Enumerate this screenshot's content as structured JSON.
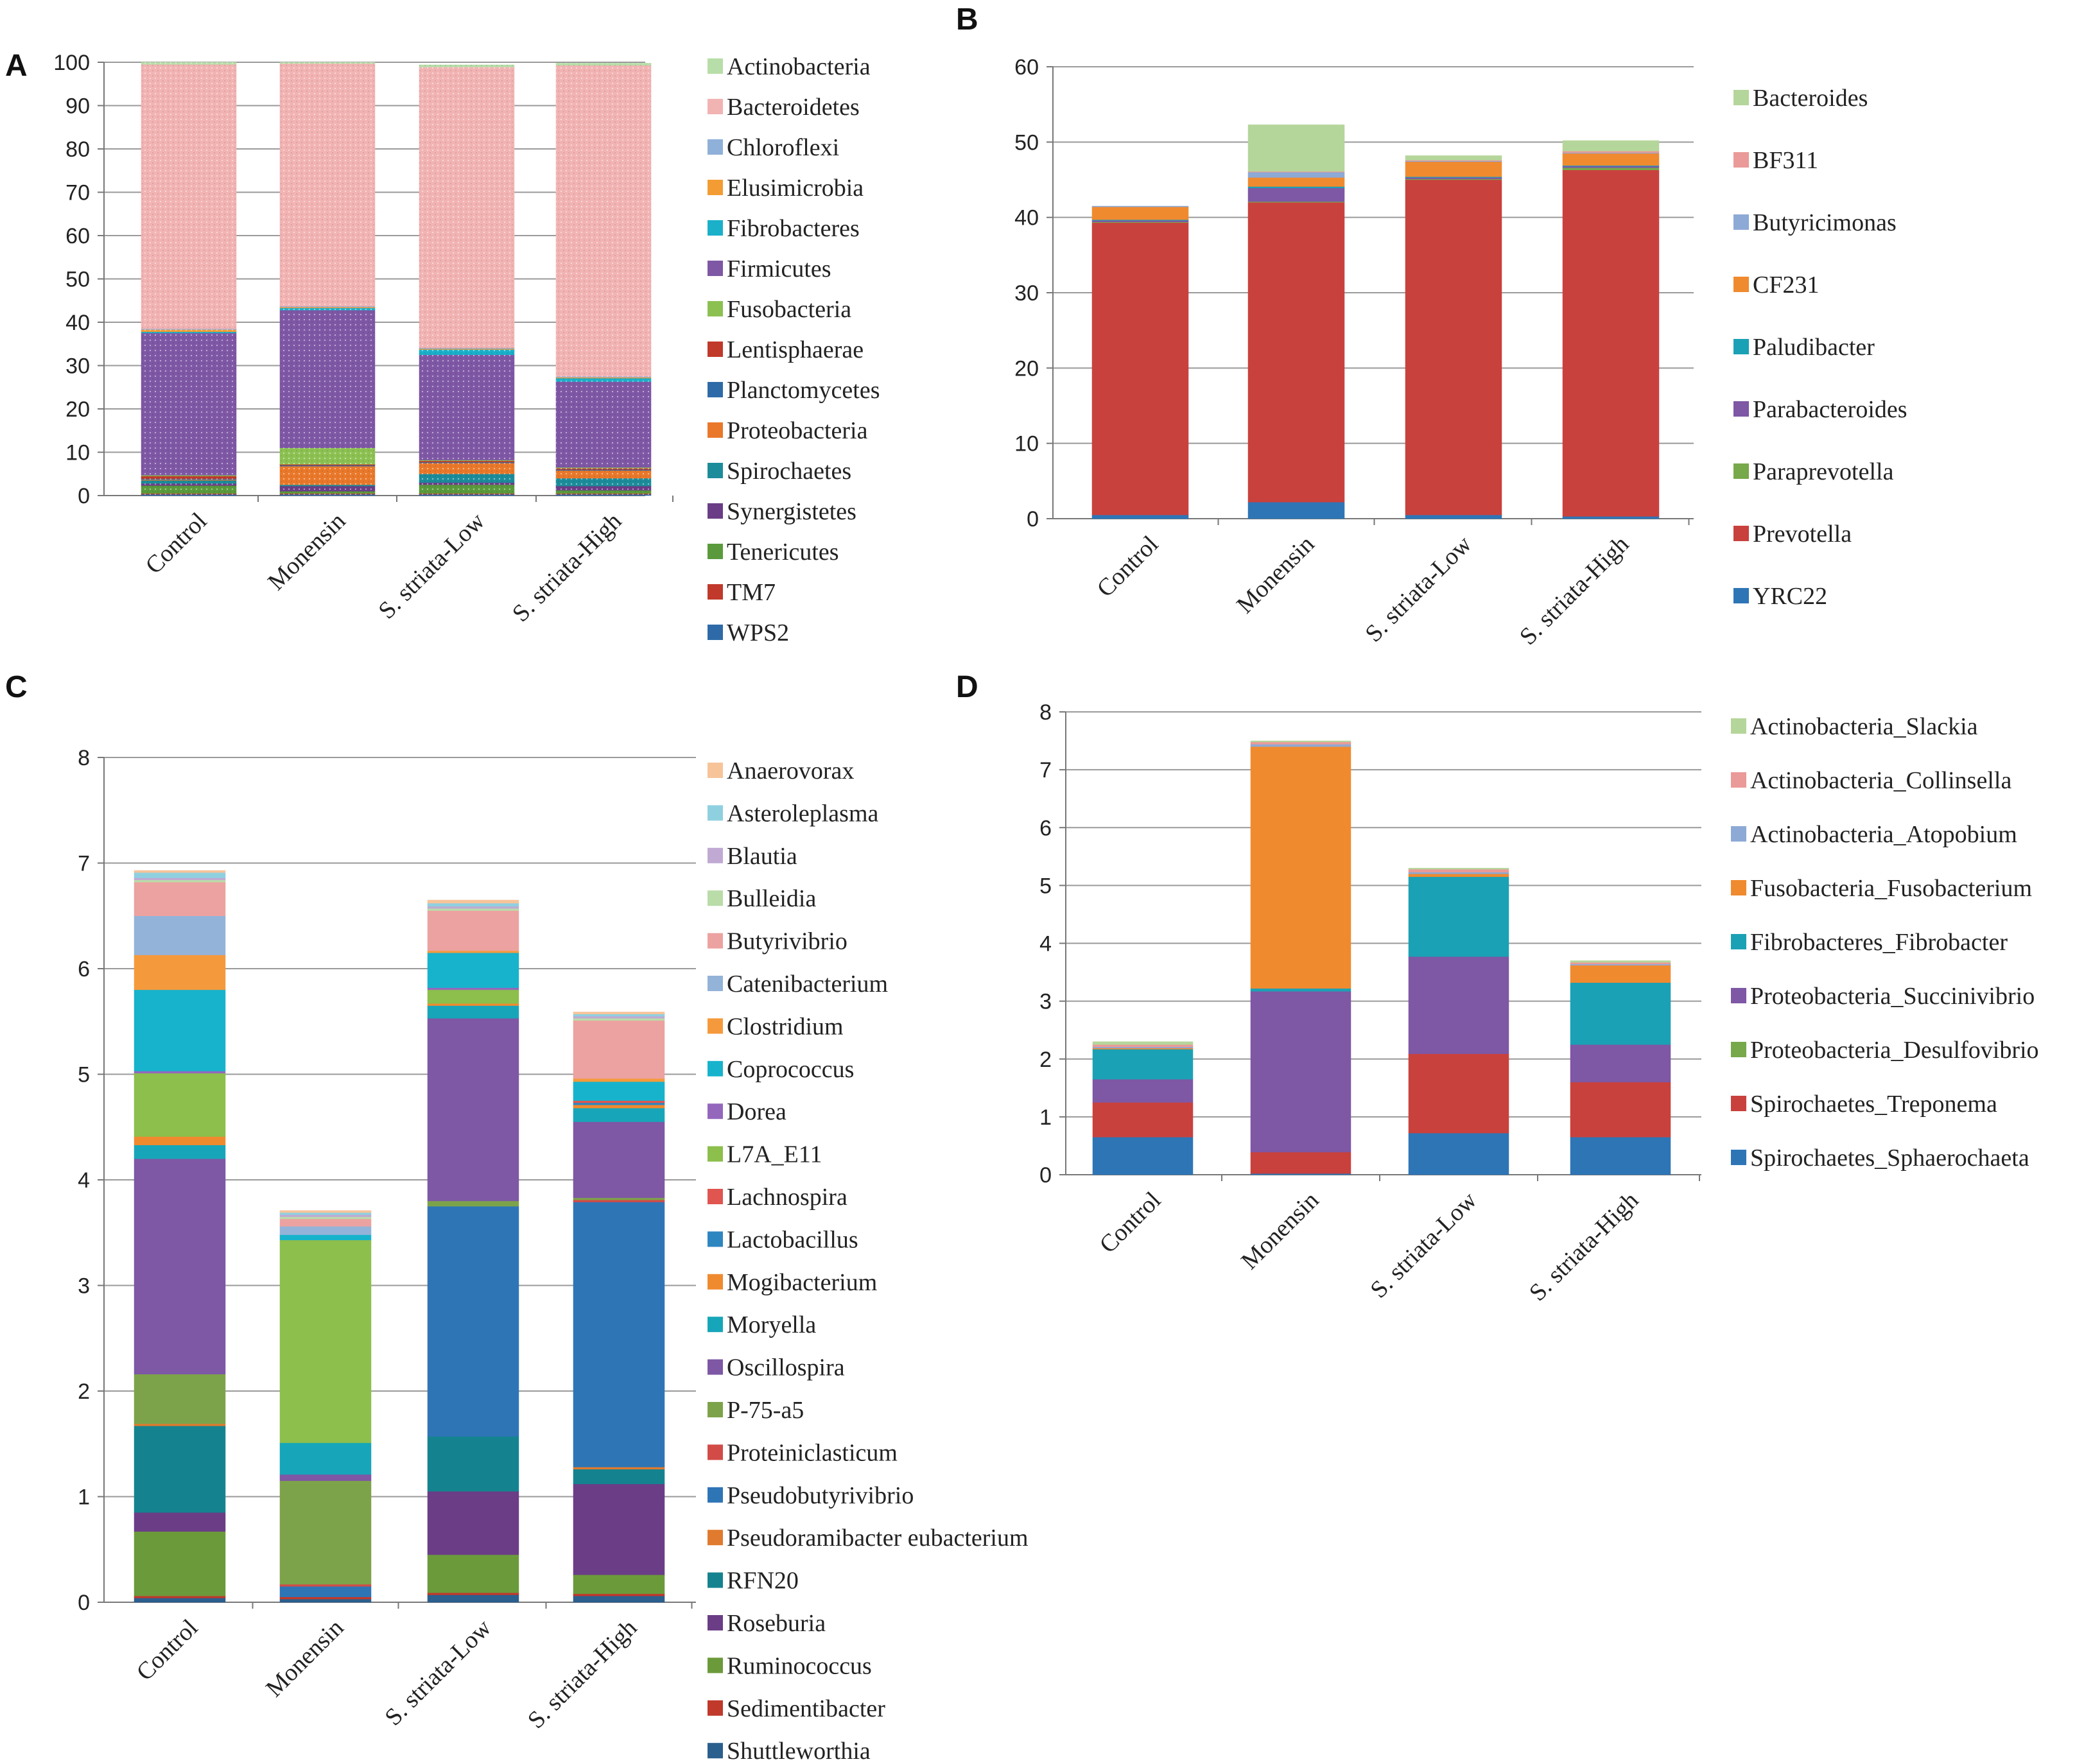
{
  "chart_data": [
    {
      "id": "A",
      "panel_label": "A",
      "type": "bar",
      "stacked": true,
      "pattern": "dotted",
      "categories": [
        "Control",
        "Monensin",
        "S. striata-Low",
        "S. striata-High"
      ],
      "ylim": [
        0,
        100
      ],
      "yticks": [
        0,
        10,
        20,
        30,
        40,
        50,
        60,
        70,
        80,
        90,
        100
      ],
      "series": [
        {
          "name": "WPS2",
          "color": "#2e6aa8",
          "values": [
            0.3,
            0.3,
            0.3,
            0.3
          ]
        },
        {
          "name": "TM7",
          "color": "#c0392b",
          "values": [
            0.2,
            0.2,
            0.2,
            0.2
          ]
        },
        {
          "name": "Tenericutes",
          "color": "#5a9a3c",
          "values": [
            1.8,
            0.5,
            2.0,
            0.7
          ]
        },
        {
          "name": "Synergistetes",
          "color": "#6b3d86",
          "values": [
            0.5,
            1.2,
            0.5,
            1.0
          ]
        },
        {
          "name": "Spirochaetes",
          "color": "#1c8c9a",
          "values": [
            0.7,
            0.3,
            2.0,
            1.8
          ]
        },
        {
          "name": "Proteobacteria",
          "color": "#e9782a",
          "values": [
            0.2,
            4.3,
            2.5,
            1.8
          ]
        },
        {
          "name": "Planctomycetes",
          "color": "#2e6aa8",
          "values": [
            0.2,
            0.2,
            0.2,
            0.2
          ]
        },
        {
          "name": "Lentisphaerae",
          "color": "#c0392b",
          "values": [
            0.6,
            0.2,
            0.3,
            0.3
          ]
        },
        {
          "name": "Fusobacteria",
          "color": "#8cc152",
          "values": [
            0.2,
            3.8,
            0.2,
            0.2
          ]
        },
        {
          "name": "Firmicutes",
          "color": "#7e57a5",
          "values": [
            32.8,
            31.8,
            24.3,
            19.8
          ]
        },
        {
          "name": "Fibrobacteres",
          "color": "#1ab0c9",
          "values": [
            0.3,
            0.5,
            1.2,
            0.8
          ]
        },
        {
          "name": "Elusimicrobia",
          "color": "#f39c33",
          "values": [
            0.5,
            0.2,
            0.2,
            0.2
          ]
        },
        {
          "name": "Chloroflexi",
          "color": "#8fb0d9",
          "values": [
            0.2,
            0.2,
            0.2,
            0.2
          ]
        },
        {
          "name": "Bacteroidetes",
          "color": "#f2b3b3",
          "values": [
            61.0,
            56.0,
            64.8,
            71.8
          ]
        },
        {
          "name": "Actinobacteria",
          "color": "#b7dea8",
          "values": [
            0.5,
            0.3,
            0.5,
            0.5
          ]
        }
      ],
      "legend_order": [
        "Actinobacteria",
        "Bacteroidetes",
        "Chloroflexi",
        "Elusimicrobia",
        "Fibrobacteres",
        "Firmicutes",
        "Fusobacteria",
        "Lentisphaerae",
        "Planctomycetes",
        "Proteobacteria",
        "Spirochaetes",
        "Synergistetes",
        "Tenericutes",
        "TM7",
        "WPS2"
      ]
    },
    {
      "id": "B",
      "panel_label": "B",
      "type": "bar",
      "stacked": true,
      "categories": [
        "Control",
        "Monensin",
        "S. striata-Low",
        "S. striata-High"
      ],
      "ylim": [
        0,
        60
      ],
      "yticks": [
        0,
        10,
        20,
        30,
        40,
        50,
        60
      ],
      "series": [
        {
          "name": "YRC22",
          "color": "#2e75b6",
          "values": [
            0.5,
            2.2,
            0.5,
            0.3
          ]
        },
        {
          "name": "Prevotella",
          "color": "#c9413d",
          "values": [
            38.8,
            39.8,
            44.5,
            46.0
          ]
        },
        {
          "name": "Paraprevotella",
          "color": "#77a84a",
          "values": [
            0.1,
            0.1,
            0.1,
            0.3
          ]
        },
        {
          "name": "Parabacteroides",
          "color": "#7e57a5",
          "values": [
            0.2,
            1.8,
            0.2,
            0.2
          ]
        },
        {
          "name": "Paludibacter",
          "color": "#1ba1b5",
          "values": [
            0.1,
            0.2,
            0.1,
            0.1
          ]
        },
        {
          "name": "CF231",
          "color": "#f08a2f",
          "values": [
            1.7,
            1.2,
            2.0,
            1.6
          ]
        },
        {
          "name": "Butyricimonas",
          "color": "#8da9d6",
          "values": [
            0.1,
            0.7,
            0.1,
            0.1
          ]
        },
        {
          "name": "BF311",
          "color": "#ea9a98",
          "values": [
            0.0,
            0.1,
            0.1,
            0.2
          ]
        },
        {
          "name": "Bacteroides",
          "color": "#b5d69b",
          "values": [
            0.0,
            6.2,
            0.6,
            1.4
          ]
        }
      ],
      "legend_order": [
        "Bacteroides",
        "BF311",
        "Butyricimonas",
        "CF231",
        "Paludibacter",
        "Parabacteroides",
        "Paraprevotella",
        "Prevotella",
        "YRC22"
      ]
    },
    {
      "id": "C",
      "panel_label": "C",
      "type": "bar",
      "stacked": true,
      "categories": [
        "Control",
        "Monensin",
        "S. striata-Low",
        "S. striata-High"
      ],
      "ylim": [
        0,
        8
      ],
      "yticks": [
        0,
        1,
        2,
        3,
        4,
        5,
        6,
        7,
        8
      ],
      "series": [
        {
          "name": "Shuttleworthia",
          "color": "#2b5f8e",
          "values": [
            0.04,
            0.03,
            0.07,
            0.06
          ]
        },
        {
          "name": "Sedimentibacter",
          "color": "#c0392b",
          "values": [
            0.02,
            0.02,
            0.02,
            0.02
          ]
        },
        {
          "name": "Ruminococcus",
          "color": "#6b9a3b",
          "values": [
            0.61,
            0.0,
            0.36,
            0.18
          ]
        },
        {
          "name": "Roseburia",
          "color": "#6b3d86",
          "values": [
            0.18,
            0.0,
            0.6,
            0.86
          ]
        },
        {
          "name": "RFN20",
          "color": "#15838f",
          "values": [
            0.82,
            0.0,
            0.52,
            0.14
          ]
        },
        {
          "name": "Pseudoramibacter eubacterium",
          "color": "#e07a2e",
          "values": [
            0.02,
            0.0,
            0.0,
            0.02
          ]
        },
        {
          "name": "Pseudobutyrivibrio",
          "color": "#2e75b6",
          "values": [
            0.0,
            0.1,
            2.18,
            2.51
          ]
        },
        {
          "name": "Proteiniclasticum",
          "color": "#d24b47",
          "values": [
            0.0,
            0.02,
            0.0,
            0.02
          ]
        },
        {
          "name": "P-75-a5",
          "color": "#7da34a",
          "values": [
            0.47,
            0.98,
            0.05,
            0.02
          ]
        },
        {
          "name": "Oscillospira",
          "color": "#7e57a5",
          "values": [
            2.04,
            0.06,
            1.73,
            0.72
          ]
        },
        {
          "name": "Moryella",
          "color": "#17a6b9",
          "values": [
            0.13,
            0.3,
            0.12,
            0.13
          ]
        },
        {
          "name": "Mogibacterium",
          "color": "#f08a2f",
          "values": [
            0.08,
            0.0,
            0.02,
            0.03
          ]
        },
        {
          "name": "Lactobacillus",
          "color": "#2e86c1",
          "values": [
            0.0,
            0.0,
            0.0,
            0.02
          ]
        },
        {
          "name": "Lachnospira",
          "color": "#e05550",
          "values": [
            0.0,
            0.0,
            0.0,
            0.02
          ]
        },
        {
          "name": "L7A_E11",
          "color": "#8cbf4c",
          "values": [
            0.6,
            1.92,
            0.13,
            0.0
          ]
        },
        {
          "name": "Dorea",
          "color": "#9467bd",
          "values": [
            0.02,
            0.0,
            0.02,
            0.0
          ]
        },
        {
          "name": "Coprococcus",
          "color": "#17b3cc",
          "values": [
            0.77,
            0.05,
            0.33,
            0.18
          ]
        },
        {
          "name": "Clostridium",
          "color": "#f59a3c",
          "values": [
            0.33,
            0.0,
            0.02,
            0.03
          ]
        },
        {
          "name": "Catenibacterium",
          "color": "#93b3d9",
          "values": [
            0.37,
            0.08,
            0.0,
            0.0
          ]
        },
        {
          "name": "Butyrivibrio",
          "color": "#eca2a0",
          "values": [
            0.32,
            0.07,
            0.38,
            0.55
          ]
        },
        {
          "name": "Bulleidia",
          "color": "#b9dca9",
          "values": [
            0.02,
            0.02,
            0.02,
            0.02
          ]
        },
        {
          "name": "Blautia",
          "color": "#c0a9d3",
          "values": [
            0.02,
            0.02,
            0.02,
            0.02
          ]
        },
        {
          "name": "Asteroleplasma",
          "color": "#8fd0e0",
          "values": [
            0.05,
            0.02,
            0.03,
            0.02
          ]
        },
        {
          "name": "Anaerovorax",
          "color": "#f7c49a",
          "values": [
            0.02,
            0.02,
            0.03,
            0.02
          ]
        }
      ],
      "legend_order": [
        "Anaerovorax",
        "Asteroleplasma",
        "Blautia",
        "Bulleidia",
        "Butyrivibrio",
        "Catenibacterium",
        "Clostridium",
        "Coprococcus",
        "Dorea",
        "L7A_E11",
        "Lachnospira",
        "Lactobacillus",
        "Mogibacterium",
        "Moryella",
        "Oscillospira",
        "P-75-a5",
        "Proteiniclasticum",
        "Pseudobutyrivibrio",
        "Pseudoramibacter eubacterium",
        "RFN20",
        "Roseburia",
        "Ruminococcus",
        "Sedimentibacter",
        "Shuttleworthia"
      ]
    },
    {
      "id": "D",
      "panel_label": "D",
      "type": "bar",
      "stacked": true,
      "categories": [
        "Control",
        "Monensin",
        "S. striata-Low",
        "S. striata-High"
      ],
      "ylim": [
        0,
        8
      ],
      "yticks": [
        0,
        1,
        2,
        3,
        4,
        5,
        6,
        7,
        8
      ],
      "series": [
        {
          "name": "Spirochaetes_Sphaerochaeta",
          "color": "#2e75b6",
          "values": [
            0.65,
            0.02,
            0.72,
            0.65
          ]
        },
        {
          "name": "Spirochaetes_Treponema",
          "color": "#c9413d",
          "values": [
            0.6,
            0.37,
            1.37,
            0.95
          ]
        },
        {
          "name": "Proteobacteria_Desulfovibrio",
          "color": "#77a84a",
          "values": [
            0.0,
            0.0,
            0.0,
            0.0
          ]
        },
        {
          "name": "Proteobacteria_Succinivibrio",
          "color": "#7e57a5",
          "values": [
            0.4,
            2.78,
            1.68,
            0.65
          ]
        },
        {
          "name": "Fibrobacteres_Fibrobacter",
          "color": "#1ba1b5",
          "values": [
            0.52,
            0.05,
            1.38,
            1.07
          ]
        },
        {
          "name": "Fusobacteria_Fusobacterium",
          "color": "#f08a2f",
          "values": [
            0.02,
            4.18,
            0.05,
            0.3
          ]
        },
        {
          "name": "Actinobacteria_Atopobium",
          "color": "#8da9d6",
          "values": [
            0.02,
            0.04,
            0.03,
            0.02
          ]
        },
        {
          "name": "Actinobacteria_Collinsella",
          "color": "#ea9a98",
          "values": [
            0.04,
            0.04,
            0.05,
            0.03
          ]
        },
        {
          "name": "Actinobacteria_Slackia",
          "color": "#b5d69b",
          "values": [
            0.05,
            0.02,
            0.02,
            0.03
          ]
        }
      ],
      "legend_order": [
        "Actinobacteria_Slackia",
        "Actinobacteria_Collinsella",
        "Actinobacteria_Atopobium",
        "Fusobacteria_Fusobacterium",
        "Fibrobacteres_Fibrobacter",
        "Proteobacteria_Succinivibrio",
        "Proteobacteria_Desulfovibrio",
        "Spirochaetes_Treponema",
        "Spirochaetes_Sphaerochaeta"
      ]
    }
  ]
}
